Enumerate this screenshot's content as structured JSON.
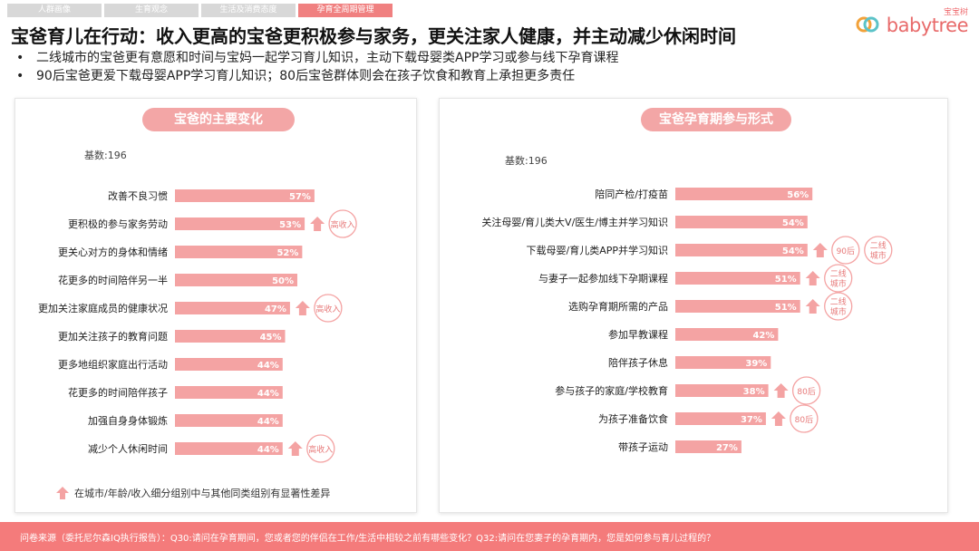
{
  "tabs": [
    {
      "label": "人群画像",
      "active": false
    },
    {
      "label": "生育观念",
      "active": false
    },
    {
      "label": "生活及消费态度",
      "active": false
    },
    {
      "label": "孕育全周期管理",
      "active": true
    }
  ],
  "logo": {
    "brand_cn": "宝宝树",
    "brand_en": "babytree"
  },
  "title": "宝爸育儿在行动：收入更高的宝爸更积极参与家务，更关注家人健康，并主动减少休闲时间",
  "bullets": [
    "二线城市的宝爸更有意愿和时间与宝妈一起学习育儿知识，主动下载母婴类APP学习或参与线下孕育课程",
    "90后宝爸更爱下载母婴APP学习育儿知识；80后宝爸群体则会在孩子饮食和教育上承担更多责任"
  ],
  "bullet_symbol": "•",
  "note": "在城市/年龄/收入细分组别中与其他同类组别有显著性差异",
  "footer": "问卷来源（委托尼尔森IQ执行报告）：Q30:请问在孕育期间，您或者您的伴侣在工作/生活中相较之前有哪些变化？Q32:请问在您妻子的孕育期内，您是如何参与育儿过程的？",
  "colors": {
    "bar": "#f4a3a3",
    "accent": "#f08080",
    "arrow": "#f4a3a3",
    "badge_border": "#f4a3a3",
    "badge_text": "#e77a7a",
    "footer": "#f47b7b"
  },
  "chart_data": [
    {
      "type": "bar",
      "orientation": "horizontal",
      "title": "宝爸的主要变化",
      "base_label": "基数:196",
      "categories": [
        "改善不良习惯",
        "更积极的参与家务劳动",
        "更关心对方的身体和情绪",
        "花更多的时间陪伴另一半",
        "更加关注家庭成员的健康状况",
        "更加关注孩子的教育问题",
        "更多地组织家庭出行活动",
        "花更多的时间陪伴孩子",
        "加强自身身体锻炼",
        "减少个人休闲时间"
      ],
      "values": [
        57,
        53,
        52,
        50,
        47,
        45,
        44,
        44,
        44,
        44
      ],
      "value_labels": [
        "57%",
        "53%",
        "52%",
        "50%",
        "47%",
        "45%",
        "44%",
        "44%",
        "44%",
        "44%"
      ],
      "annotations": [
        {
          "index": 1,
          "arrow": true,
          "badge": "高收入"
        },
        {
          "index": 4,
          "arrow": true,
          "badge": "高收入"
        },
        {
          "index": 9,
          "arrow": true,
          "badge": "高收入"
        }
      ]
    },
    {
      "type": "bar",
      "orientation": "horizontal",
      "title": "宝爸孕育期参与形式",
      "base_label": "基数:196",
      "categories": [
        "陪同产检/打疫苗",
        "关注母婴/育儿类大V/医生/博主并学习知识",
        "下载母婴/育儿类APP并学习知识",
        "与妻子一起参加线下孕期课程",
        "选购孕育期所需的产品",
        "参加早教课程",
        "陪伴孩子休息",
        "参与孩子的家庭/学校教育",
        "为孩子准备饮食",
        "带孩子运动"
      ],
      "values": [
        56,
        54,
        54,
        51,
        51,
        42,
        39,
        38,
        37,
        27
      ],
      "value_labels": [
        "56%",
        "54%",
        "54%",
        "51%",
        "51%",
        "42%",
        "39%",
        "38%",
        "37%",
        "27%"
      ],
      "annotations": [
        {
          "index": 2,
          "arrow": true,
          "badges": [
            "90后",
            "二线城市"
          ]
        },
        {
          "index": 3,
          "arrow": true,
          "badges": [
            "二线城市"
          ]
        },
        {
          "index": 4,
          "arrow": true,
          "badges": [
            "二线城市"
          ]
        },
        {
          "index": 7,
          "arrow": true,
          "badges": [
            "80后"
          ]
        },
        {
          "index": 8,
          "arrow": true,
          "badges": [
            "80后"
          ]
        }
      ]
    }
  ]
}
